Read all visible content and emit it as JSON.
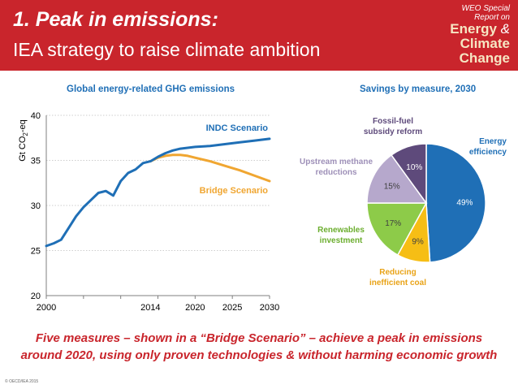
{
  "header": {
    "title_line1": "1. Peak in emissions:",
    "title_line2": "IEA strategy to raise climate ambition",
    "brand_top1": "WEO Special",
    "brand_top2": "Report on",
    "brand_energy": "Energy",
    "brand_amp": "&",
    "brand_climate": "Climate",
    "brand_change": "Change",
    "bg_color": "#c9252c"
  },
  "chart_data": [
    {
      "type": "line",
      "title": "Global energy-related GHG emissions",
      "ylabel_main": "Gt CO",
      "ylabel_sub": "2",
      "ylabel_tail": "-eq",
      "ylim": [
        20,
        40
      ],
      "yticks": [
        20,
        25,
        30,
        35,
        40
      ],
      "xlim": [
        2000,
        2030
      ],
      "xticks": [
        2000,
        2014,
        2020,
        2025,
        2030
      ],
      "series": [
        {
          "name": "INDC Scenario",
          "color": "#1f6fb6",
          "x": [
            2000,
            2001,
            2002,
            2003,
            2004,
            2005,
            2006,
            2007,
            2008,
            2009,
            2010,
            2011,
            2012,
            2013,
            2014,
            2015,
            2016,
            2017,
            2018,
            2019,
            2020,
            2022,
            2024,
            2026,
            2028,
            2030
          ],
          "y": [
            25.5,
            25.8,
            26.2,
            27.5,
            28.8,
            29.8,
            30.6,
            31.4,
            31.6,
            31.1,
            32.7,
            33.6,
            34.0,
            34.7,
            34.9,
            35.4,
            35.8,
            36.1,
            36.3,
            36.4,
            36.5,
            36.6,
            36.8,
            37.0,
            37.2,
            37.4
          ]
        },
        {
          "name": "Bridge Scenario",
          "color": "#f0a631",
          "x": [
            2014,
            2015,
            2016,
            2017,
            2018,
            2019,
            2020,
            2022,
            2024,
            2026,
            2028,
            2030
          ],
          "y": [
            34.9,
            35.3,
            35.5,
            35.6,
            35.6,
            35.5,
            35.3,
            34.9,
            34.4,
            33.9,
            33.3,
            32.7
          ]
        }
      ]
    },
    {
      "type": "pie",
      "title": "Savings by measure, 2030",
      "slices": [
        {
          "label": "Energy efficiency",
          "label_lines": [
            "Energy",
            "efficiency"
          ],
          "value": 49,
          "value_label": "49%",
          "color": "#1f6fb6",
          "label_color": "#1f6fb6"
        },
        {
          "label": "Reducing inefficient coal",
          "label_lines": [
            "Reducing",
            "inefficient coal"
          ],
          "value": 9,
          "value_label": "9%",
          "color": "#f6be15",
          "label_color": "#e9a317"
        },
        {
          "label": "Renewables investment",
          "label_lines": [
            "Renewables",
            "investment"
          ],
          "value": 17,
          "value_label": "17%",
          "color": "#8dcb49",
          "label_color": "#6cae2f"
        },
        {
          "label": "Upstream methane reductions",
          "label_lines": [
            "Upstream methane",
            "reductions"
          ],
          "value": 15,
          "value_label": "15%",
          "color": "#b6a8cc",
          "label_color": "#9e90b8"
        },
        {
          "label": "Fossil-fuel subsidy reform",
          "label_lines": [
            "Fossil-fuel",
            "subsidy reform"
          ],
          "value": 10,
          "value_label": "10%",
          "color": "#5e4a7b",
          "label_color": "#5e4a7b"
        }
      ]
    }
  ],
  "bottom": {
    "line1": "Five measures – shown in a “Bridge Scenario” – achieve a peak in emissions",
    "line2": "around 2020, using only proven technologies & without harming economic growth"
  },
  "copyright": "© OECD/IEA 2015"
}
